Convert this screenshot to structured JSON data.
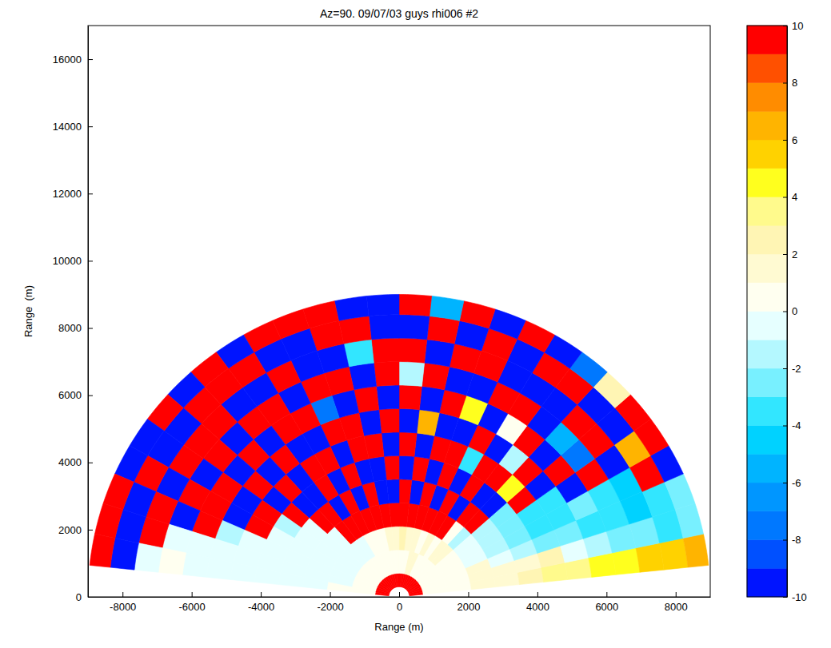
{
  "chart_data": {
    "type": "polar_heatmap",
    "title": "Az=90. 09/07/03 guys rhi006 #2",
    "x_label": "Range (m)",
    "y_label": "Range  (m)",
    "xlim": [
      -9000,
      9000
    ],
    "ylim": [
      0,
      17000
    ],
    "xticks": [
      -8000,
      -6000,
      -4000,
      -2000,
      0,
      2000,
      4000,
      6000,
      8000
    ],
    "yticks": [
      0,
      2000,
      4000,
      6000,
      8000,
      10000,
      12000,
      14000,
      16000
    ],
    "angles": [
      6,
      12,
      18,
      24,
      30,
      36,
      42,
      48,
      54,
      60,
      66,
      72,
      78,
      84,
      90,
      96,
      102,
      108,
      114,
      120,
      126,
      132,
      138,
      144,
      150,
      156,
      162,
      168,
      174
    ],
    "ranges": [
      300,
      700,
      1400,
      2100,
      2800,
      3500,
      4200,
      4900,
      5600,
      6300,
      7000,
      7700,
      8400,
      9000
    ],
    "values": [
      [
        10,
        0,
        0,
        1,
        1,
        2,
        3,
        3,
        4,
        4,
        5,
        5,
        6
      ],
      [
        10,
        0,
        0,
        1,
        1,
        1,
        2,
        -1,
        -2,
        -3,
        -3,
        -4,
        -3
      ],
      [
        10,
        0,
        0,
        1,
        -1,
        -2,
        -3,
        -3,
        -4,
        -4,
        -5,
        -4,
        -3
      ],
      [
        10,
        0,
        0,
        -1,
        -2,
        -3,
        -4,
        -4,
        -3,
        -4,
        -5,
        10,
        -10
      ],
      [
        10,
        0,
        0,
        -1,
        -2,
        -3,
        -4,
        -4,
        -10,
        10,
        -10,
        6,
        10
      ],
      [
        10,
        0,
        0,
        -1,
        -2,
        -3,
        10,
        -10,
        10,
        -8,
        10,
        -10,
        10
      ],
      [
        10,
        0,
        1,
        -2,
        10,
        -10,
        4,
        10,
        -10,
        -6,
        10,
        -10,
        2
      ],
      [
        10,
        0,
        1,
        0,
        10,
        -10,
        10,
        -2,
        10,
        -10,
        -10,
        10,
        -8
      ],
      [
        10,
        0,
        0,
        10,
        -10,
        10,
        10,
        -10,
        0,
        10,
        -10,
        10,
        -10
      ],
      [
        10,
        0,
        1,
        10,
        10,
        -10,
        -4,
        10,
        -10,
        10,
        -10,
        -10,
        10
      ],
      [
        10,
        1,
        0,
        10,
        -10,
        10,
        10,
        -10,
        4,
        -10,
        10,
        10,
        -10
      ],
      [
        10,
        1,
        1,
        10,
        10,
        -10,
        10,
        -10,
        10,
        -10,
        10,
        -10,
        10
      ],
      [
        10,
        0,
        1,
        10,
        -10,
        10,
        -10,
        6,
        -10,
        10,
        -10,
        10,
        -6
      ],
      [
        10,
        0,
        2,
        10,
        10,
        -10,
        10,
        -10,
        10,
        -2,
        10,
        -10,
        10
      ],
      [
        10,
        0,
        1,
        10,
        -10,
        10,
        -10,
        10,
        -10,
        10,
        10,
        -10,
        -10
      ],
      [
        10,
        0,
        1,
        10,
        -10,
        -10,
        10,
        -10,
        10,
        -10,
        -4,
        10,
        -10
      ],
      [
        10,
        0,
        0,
        10,
        10,
        -10,
        10,
        10,
        -10,
        10,
        -10,
        10,
        10
      ],
      [
        10,
        0,
        0,
        10,
        -10,
        10,
        -10,
        10,
        -8,
        10,
        -10,
        -10,
        10
      ],
      [
        10,
        0,
        0,
        10,
        10,
        -10,
        10,
        -10,
        10,
        -10,
        10,
        -10,
        10
      ],
      [
        10,
        0,
        -1,
        10,
        -10,
        10,
        10,
        -10,
        10,
        10,
        -10,
        10,
        -10
      ],
      [
        10,
        0,
        -1,
        10,
        10,
        -10,
        -10,
        10,
        -10,
        10,
        -10,
        10,
        10
      ],
      [
        10,
        0,
        -1,
        -1,
        10,
        -10,
        10,
        -10,
        10,
        -10,
        10,
        10,
        -10
      ],
      [
        10,
        0,
        -1,
        -1,
        -1,
        10,
        -10,
        10,
        -10,
        10,
        10,
        -10,
        10
      ],
      [
        10,
        0,
        -1,
        -1,
        -1,
        -2,
        10,
        -10,
        10,
        -10,
        10,
        -10,
        -10
      ],
      [
        10,
        0,
        -1,
        -1,
        -1,
        -1,
        10,
        -10,
        10,
        10,
        -10,
        10,
        -10
      ],
      [
        10,
        0,
        -1,
        -1,
        -1,
        -1,
        -1,
        -2,
        10,
        -10,
        10,
        -10,
        10
      ],
      [
        10,
        0,
        -1,
        -1,
        -1,
        -1,
        -1,
        -1,
        -1,
        -1,
        10,
        -10,
        10
      ],
      [
        10,
        0,
        0,
        -1,
        -1,
        -1,
        -1,
        -1,
        -1,
        0,
        -1,
        -10,
        10
      ]
    ],
    "clim": [
      -10,
      10
    ],
    "cticks": [
      -10,
      -8,
      -6,
      -4,
      -2,
      0,
      2,
      4,
      6,
      8,
      10
    ],
    "colors": [
      "#0014ff",
      "#0050ff",
      "#0078ff",
      "#0096ff",
      "#00b4ff",
      "#00d2ff",
      "#32e6ff",
      "#78f0ff",
      "#b4f8ff",
      "#e6ffff",
      "#fffff0",
      "#fffad2",
      "#fff5b4",
      "#fffa8c",
      "#ffff1e",
      "#ffd200",
      "#ffb400",
      "#ff8c00",
      "#ff5000",
      "#ff0000"
    ]
  }
}
